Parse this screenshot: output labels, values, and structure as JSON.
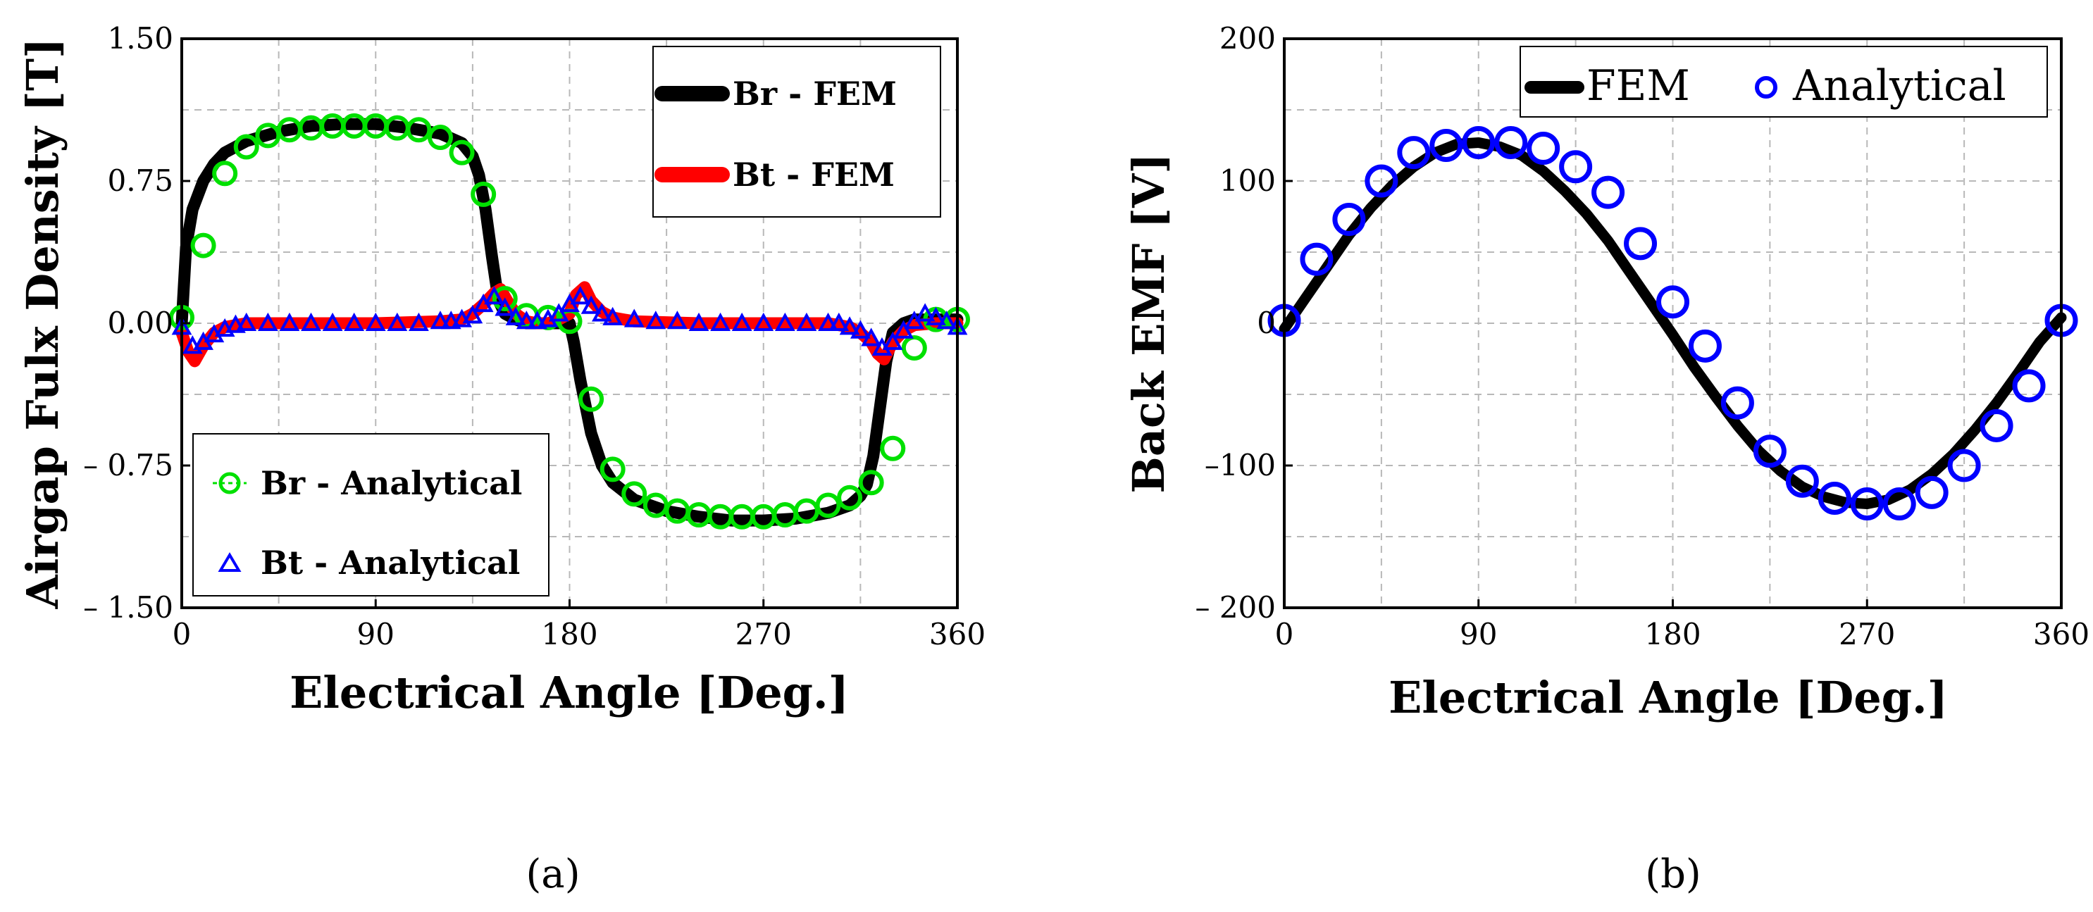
{
  "chart_data": [
    {
      "id": "a",
      "type": "line",
      "caption": "(a)",
      "xlabel": "Electrical Angle [Deg.]",
      "ylabel": "Airgap Fulx Density [T]",
      "xlim": [
        0,
        360
      ],
      "ylim": [
        -1.5,
        1.5
      ],
      "xticks": [
        0,
        90,
        180,
        270,
        360
      ],
      "xtick_labels": [
        "0",
        "90",
        "180",
        "270",
        "360"
      ],
      "yticks": [
        -1.5,
        -0.75,
        0,
        0.75,
        1.5
      ],
      "ytick_labels": [
        "– 1.50",
        "– 0.75",
        "0.00",
        "0.75",
        "1.50"
      ],
      "grid": true,
      "legends": [
        {
          "position": "top-right",
          "entries": [
            "Br - FEM",
            "Bt - FEM"
          ]
        },
        {
          "position": "bottom-left",
          "entries": [
            "Br - Analytical",
            "Bt - Analytical"
          ]
        }
      ],
      "series": [
        {
          "name": "Br - FEM",
          "style": "line",
          "color": "#000000",
          "x": [
            0,
            2,
            5,
            10,
            15,
            20,
            30,
            45,
            60,
            75,
            90,
            105,
            120,
            130,
            135,
            138,
            141,
            144,
            147,
            150,
            155,
            160,
            165,
            170,
            175,
            180,
            182,
            185,
            190,
            195,
            200,
            210,
            225,
            240,
            255,
            270,
            285,
            300,
            310,
            315,
            318,
            321,
            324,
            327,
            330,
            335,
            340,
            345,
            350,
            355,
            360
          ],
          "y": [
            0,
            0.4,
            0.6,
            0.75,
            0.84,
            0.9,
            0.96,
            1.01,
            1.04,
            1.05,
            1.05,
            1.03,
            1.0,
            0.95,
            0.88,
            0.78,
            0.6,
            0.35,
            0.12,
            0.05,
            0.02,
            0.0,
            0.0,
            0.0,
            0.0,
            0.0,
            -0.1,
            -0.3,
            -0.58,
            -0.75,
            -0.84,
            -0.93,
            -0.99,
            -1.02,
            -1.04,
            -1.04,
            -1.03,
            -1.0,
            -0.96,
            -0.91,
            -0.85,
            -0.7,
            -0.45,
            -0.2,
            -0.05,
            0.0,
            0.02,
            0.02,
            0.02,
            0.02,
            0.02
          ]
        },
        {
          "name": "Bt - FEM",
          "style": "line",
          "color": "#ff0000",
          "x": [
            0,
            3,
            6,
            10,
            15,
            20,
            30,
            60,
            90,
            120,
            130,
            135,
            140,
            145,
            148,
            151,
            155,
            160,
            165,
            170,
            175,
            180,
            183,
            187,
            190,
            195,
            200,
            210,
            240,
            270,
            300,
            310,
            315,
            320,
            323,
            326,
            330,
            335,
            340,
            350,
            360
          ],
          "y": [
            -0.05,
            -0.15,
            -0.2,
            -0.12,
            -0.05,
            -0.02,
            0.0,
            0.0,
            0.0,
            0.01,
            0.02,
            0.05,
            0.1,
            0.16,
            0.18,
            0.12,
            0.05,
            0.01,
            0.0,
            0.0,
            0.02,
            0.05,
            0.15,
            0.19,
            0.12,
            0.06,
            0.03,
            0.01,
            0.0,
            0.0,
            0.0,
            -0.02,
            -0.05,
            -0.1,
            -0.16,
            -0.19,
            -0.1,
            -0.04,
            -0.01,
            0.0,
            0.0
          ]
        },
        {
          "name": "Br - Analytical",
          "style": "circle-marker",
          "color": "#00e000",
          "x": [
            0,
            10,
            20,
            30,
            40,
            50,
            60,
            70,
            80,
            90,
            100,
            110,
            120,
            130,
            140,
            150,
            160,
            170,
            180,
            190,
            200,
            210,
            220,
            230,
            240,
            250,
            260,
            270,
            280,
            290,
            300,
            310,
            320,
            330,
            340,
            350,
            360
          ],
          "y": [
            0.03,
            0.41,
            0.79,
            0.93,
            0.99,
            1.02,
            1.03,
            1.04,
            1.04,
            1.04,
            1.03,
            1.02,
            0.98,
            0.9,
            0.68,
            0.13,
            0.04,
            0.03,
            0.01,
            -0.4,
            -0.77,
            -0.9,
            -0.96,
            -0.99,
            -1.01,
            -1.02,
            -1.02,
            -1.02,
            -1.01,
            -0.99,
            -0.96,
            -0.92,
            -0.84,
            -0.66,
            -0.13,
            0.02,
            0.02
          ]
        },
        {
          "name": "Bt - Analytical",
          "style": "triangle-marker",
          "color": "#0000ff",
          "x": [
            0,
            5,
            10,
            15,
            20,
            25,
            30,
            40,
            50,
            60,
            70,
            80,
            90,
            100,
            110,
            120,
            125,
            130,
            135,
            140,
            145,
            150,
            155,
            160,
            165,
            170,
            175,
            180,
            185,
            190,
            195,
            200,
            210,
            220,
            230,
            240,
            250,
            260,
            270,
            280,
            290,
            300,
            305,
            310,
            315,
            320,
            325,
            330,
            335,
            340,
            345,
            350,
            355,
            360
          ],
          "y": [
            -0.02,
            -0.12,
            -0.1,
            -0.06,
            -0.03,
            -0.01,
            0.0,
            0.0,
            0.0,
            0.0,
            0.0,
            0.0,
            0.0,
            0.0,
            0.0,
            0.01,
            0.01,
            0.02,
            0.04,
            0.1,
            0.14,
            0.08,
            0.03,
            0.01,
            0.01,
            0.02,
            0.05,
            0.1,
            0.14,
            0.09,
            0.05,
            0.03,
            0.02,
            0.01,
            0.01,
            0.0,
            0.0,
            0.0,
            0.0,
            0.0,
            0.0,
            0.0,
            0.0,
            -0.02,
            -0.04,
            -0.08,
            -0.13,
            -0.1,
            -0.04,
            0.01,
            0.05,
            0.03,
            0.01,
            -0.02
          ]
        }
      ]
    },
    {
      "id": "b",
      "type": "line",
      "caption": "(b)",
      "xlabel": "Electrical Angle [Deg.]",
      "ylabel": "Back EMF [V]",
      "xlim": [
        0,
        360
      ],
      "ylim": [
        -200,
        200
      ],
      "xticks": [
        0,
        90,
        180,
        270,
        360
      ],
      "xtick_labels": [
        "0",
        "90",
        "180",
        "270",
        "360"
      ],
      "yticks": [
        -200,
        -100,
        0,
        100,
        200
      ],
      "ytick_labels": [
        "– 200",
        "–100",
        "0",
        "100",
        "200"
      ],
      "grid": true,
      "legends": [
        {
          "position": "top-right",
          "entries": [
            "FEM",
            "Analytical"
          ]
        }
      ],
      "series": [
        {
          "name": "FEM",
          "style": "line",
          "color": "#000000",
          "amplitude": 127,
          "phase_offset_deg": 2,
          "x": [
            0,
            10,
            20,
            30,
            40,
            50,
            60,
            70,
            80,
            90,
            100,
            110,
            120,
            130,
            140,
            150,
            160,
            170,
            180,
            190,
            200,
            210,
            220,
            230,
            240,
            250,
            260,
            270,
            280,
            290,
            300,
            310,
            320,
            330,
            340,
            350,
            360
          ],
          "y": [
            -4,
            18,
            40,
            62,
            81,
            97,
            110,
            120,
            126,
            127,
            124,
            118,
            107,
            93,
            77,
            58,
            36,
            14,
            -8,
            -31,
            -52,
            -72,
            -90,
            -104,
            -115,
            -122,
            -126,
            -127,
            -124,
            -117,
            -106,
            -92,
            -75,
            -56,
            -35,
            -13,
            4
          ]
        },
        {
          "name": "Analytical",
          "style": "circle-marker",
          "color": "#0000ff",
          "x": [
            0,
            15,
            30,
            45,
            60,
            75,
            90,
            105,
            120,
            135,
            150,
            165,
            180,
            195,
            210,
            225,
            240,
            255,
            270,
            285,
            300,
            315,
            330,
            345,
            360
          ],
          "y": [
            2,
            45,
            73,
            100,
            120,
            125,
            127,
            127,
            123,
            110,
            92,
            56,
            15,
            -16,
            -56,
            -90,
            -111,
            -123,
            -127,
            -127,
            -119,
            -100,
            -72,
            -44,
            2
          ]
        }
      ]
    }
  ]
}
